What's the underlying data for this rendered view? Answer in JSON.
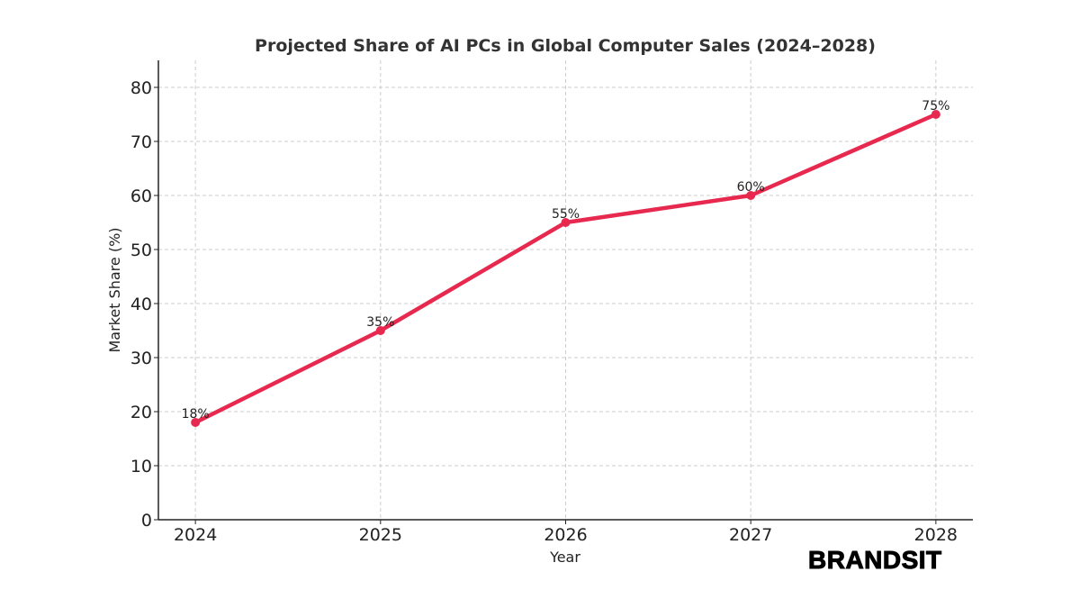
{
  "chart_data": {
    "type": "line",
    "title": "Projected Share of AI PCs in Global Computer Sales (2024–2028)",
    "xlabel": "Year",
    "ylabel": "Market Share (%)",
    "x": [
      2024,
      2025,
      2026,
      2027,
      2028
    ],
    "xticks": [
      "2024",
      "2025",
      "2026",
      "2027",
      "2028"
    ],
    "yticks": [
      "0",
      "10",
      "20",
      "30",
      "40",
      "50",
      "60",
      "70",
      "80"
    ],
    "xlim": [
      2023.8,
      2028.2
    ],
    "ylim": [
      0,
      85
    ],
    "series": [
      {
        "values": [
          18,
          35,
          55,
          60,
          75
        ],
        "labels": [
          "18%",
          "35%",
          "55%",
          "60%",
          "75%"
        ],
        "color": "#e8294f"
      }
    ],
    "grid": true,
    "markers": true
  },
  "branding": {
    "logo_text": "BRANDSIT"
  }
}
